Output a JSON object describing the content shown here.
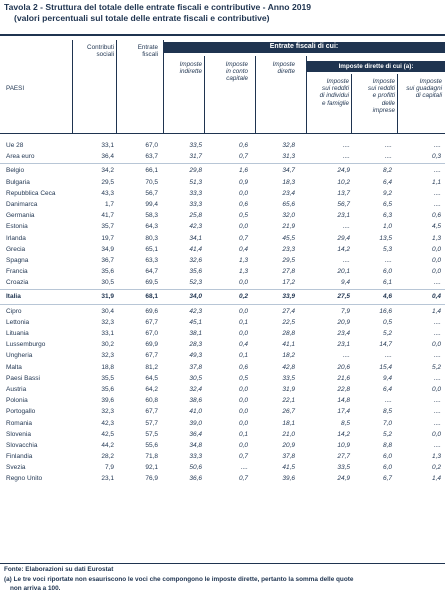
{
  "title": "Tavola 2 - Struttura del totale delle entrate fiscali e contributive - Anno 2019",
  "subtitle": "(valori percentuali sul totale delle entrate fiscali e contributive)",
  "header": {
    "paesi": "PAESI",
    "contributi_1": "Contributi",
    "contributi_2": "sociali",
    "entrate_1": "Entrate",
    "entrate_2": "fiscali",
    "entrate_fiscali_di_cui": "Entrate fiscali di cui:",
    "imposte_indirette_1": "Imposte",
    "imposte_indirette_2": "indirette",
    "imposte_capitale_1": "Imposte",
    "imposte_capitale_2": "in conto",
    "imposte_capitale_3": "capitale",
    "imposte_dirette_1": "Imposte",
    "imposte_dirette_2": "dirette",
    "imposte_dirette_di_cui": "Imposte dirette di cui (a):",
    "redditi_individui_1": "Imposte",
    "redditi_individui_2": "sui redditi",
    "redditi_individui_3": "di individui",
    "redditi_individui_4": "e famiglie",
    "redditi_imprese_1": "Imposte",
    "redditi_imprese_2": "sui redditi",
    "redditi_imprese_3": "e profitti",
    "redditi_imprese_4": "delle",
    "redditi_imprese_5": "imprese",
    "guadagni_1": "Imposte",
    "guadagni_2": "sui guadagni",
    "guadagni_3": "di capitali"
  },
  "groups": [
    [
      [
        "Ue 28",
        "33,1",
        "67,0",
        "33,5",
        "0,6",
        "32,8",
        "....",
        "....",
        "...."
      ],
      [
        "Area euro",
        "36,4",
        "63,7",
        "31,7",
        "0,7",
        "31,3",
        "....",
        "....",
        "0,3"
      ]
    ],
    [
      [
        "Belgio",
        "34,2",
        "66,1",
        "29,8",
        "1,6",
        "34,7",
        "24,9",
        "8,2",
        "...."
      ],
      [
        "Bulgaria",
        "29,5",
        "70,5",
        "51,3",
        "0,9",
        "18,3",
        "10,2",
        "6,4",
        "1,1"
      ],
      [
        "Repubblica Ceca",
        "43,3",
        "56,7",
        "33,3",
        "0,0",
        "23,4",
        "13,7",
        "9,2",
        "...."
      ],
      [
        "Danimarca",
        "1,7",
        "99,4",
        "33,3",
        "0,6",
        "65,6",
        "56,7",
        "6,5",
        "...."
      ],
      [
        "Germania",
        "41,7",
        "58,3",
        "25,8",
        "0,5",
        "32,0",
        "23,1",
        "6,3",
        "0,6"
      ],
      [
        "Estonia",
        "35,7",
        "64,3",
        "42,3",
        "0,0",
        "21,9",
        "....",
        "1,0",
        "4,5"
      ],
      [
        "Irlanda",
        "19,7",
        "80,3",
        "34,1",
        "0,7",
        "45,5",
        "29,4",
        "13,5",
        "1,3"
      ],
      [
        "Grecia",
        "34,9",
        "65,1",
        "41,4",
        "0,4",
        "23,3",
        "14,2",
        "5,3",
        "0,0"
      ],
      [
        "Spagna",
        "36,7",
        "63,3",
        "32,6",
        "1,3",
        "29,5",
        "....",
        "....",
        "0,0"
      ],
      [
        "Francia",
        "35,6",
        "64,7",
        "35,6",
        "1,3",
        "27,8",
        "20,1",
        "6,0",
        "0,0"
      ],
      [
        "Croazia",
        "30,5",
        "69,5",
        "52,3",
        "0,0",
        "17,2",
        "9,4",
        "6,1",
        "...."
      ]
    ],
    [
      [
        "Italia",
        "31,9",
        "68,1",
        "34,0",
        "0,2",
        "33,9",
        "27,5",
        "4,6",
        "0,4"
      ]
    ],
    [
      [
        "Cipro",
        "30,4",
        "69,6",
        "42,3",
        "0,0",
        "27,4",
        "7,9",
        "16,6",
        "1,4"
      ],
      [
        "Lettonia",
        "32,3",
        "67,7",
        "45,1",
        "0,1",
        "22,5",
        "20,9",
        "0,5",
        "...."
      ],
      [
        "Lituania",
        "33,1",
        "67,0",
        "38,1",
        "0,0",
        "28,8",
        "23,4",
        "5,2",
        "...."
      ],
      [
        "Lussemburgo",
        "30,2",
        "69,9",
        "28,3",
        "0,4",
        "41,1",
        "23,1",
        "14,7",
        "0,0"
      ],
      [
        "Ungheria",
        "32,3",
        "67,7",
        "49,3",
        "0,1",
        "18,2",
        "....",
        "....",
        "...."
      ],
      [
        "Malta",
        "18,8",
        "81,2",
        "37,8",
        "0,6",
        "42,8",
        "20,6",
        "15,4",
        "5,2"
      ],
      [
        "Paesi Bassi",
        "35,5",
        "64,5",
        "30,5",
        "0,5",
        "33,5",
        "21,6",
        "9,4",
        "...."
      ],
      [
        "Austria",
        "35,6",
        "64,2",
        "32,4",
        "0,0",
        "31,9",
        "22,8",
        "6,4",
        "0,0"
      ],
      [
        "Polonia",
        "39,6",
        "60,8",
        "38,6",
        "0,0",
        "22,1",
        "14,8",
        "....",
        "...."
      ],
      [
        "Portogallo",
        "32,3",
        "67,7",
        "41,0",
        "0,0",
        "26,7",
        "17,4",
        "8,5",
        "...."
      ],
      [
        "Romania",
        "42,3",
        "57,7",
        "39,0",
        "0,0",
        "18,1",
        "8,5",
        "7,0",
        "...."
      ],
      [
        "Slovenia",
        "42,5",
        "57,5",
        "36,4",
        "0,1",
        "21,0",
        "14,2",
        "5,2",
        "0,0"
      ],
      [
        "Slovacchia",
        "44,2",
        "55,6",
        "34,8",
        "0,0",
        "20,9",
        "10,9",
        "8,8",
        "...."
      ],
      [
        "Finlandia",
        "28,2",
        "71,8",
        "33,3",
        "0,7",
        "37,8",
        "27,7",
        "6,0",
        "1,3"
      ],
      [
        "Svezia",
        "7,9",
        "92,1",
        "50,6",
        "....",
        "41,5",
        "33,5",
        "6,0",
        "0,2"
      ],
      [
        "Regno Unito",
        "23,1",
        "76,9",
        "36,6",
        "0,7",
        "39,6",
        "24,9",
        "6,7",
        "1,4"
      ]
    ]
  ],
  "notes": {
    "fonte": "Fonte: Elaborazioni su dati Eurostat",
    "nota_a_1": "(a) Le tre voci riportate non esauriscono le voci che compongono le imposte dirette, pertanto la somma delle quote",
    "nota_a_2": "non arriva a 100."
  },
  "colors": {
    "navy": "#1f3450",
    "separator": "#b8c6d6"
  }
}
